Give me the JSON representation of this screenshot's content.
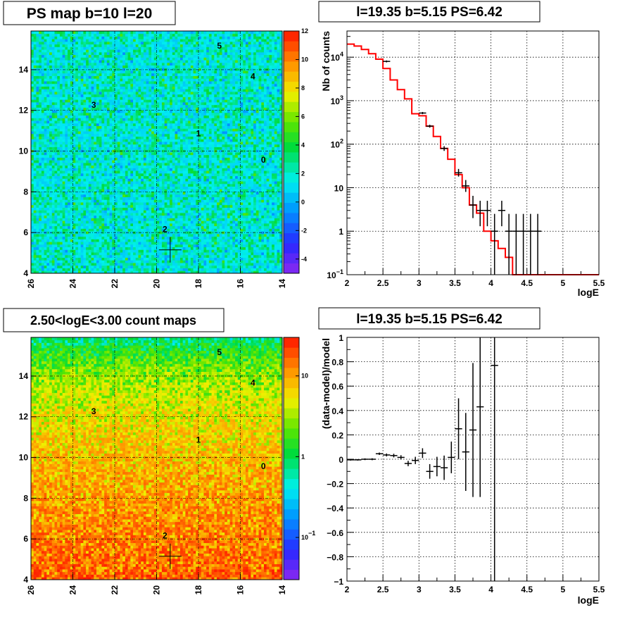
{
  "chart_data": [
    {
      "id": "ps_map",
      "type": "heatmap",
      "title": "PS map b=10 l=20",
      "x_ticks": [
        "26",
        "24",
        "22",
        "20",
        "18",
        "16",
        "14"
      ],
      "y_ticks": [
        "4",
        "6",
        "8",
        "10",
        "12",
        "14"
      ],
      "xlim": [
        26,
        14
      ],
      "ylim": [
        4,
        15.9
      ],
      "colorbar": {
        "min": -5,
        "max": 12,
        "scale": "linear",
        "tick_values": [
          -4,
          -2,
          0,
          2,
          4,
          6,
          8,
          10,
          12
        ],
        "tick_labels": [
          "-4",
          "-2",
          "0",
          "2",
          "4",
          "6",
          "8",
          "10",
          "12"
        ]
      },
      "sources": [
        {
          "label": "5",
          "l": 17.0,
          "b": 15.2
        },
        {
          "label": "4",
          "l": 15.4,
          "b": 13.7
        },
        {
          "label": "3",
          "l": 23.0,
          "b": 12.3
        },
        {
          "label": "1",
          "l": 18.0,
          "b": 10.9
        },
        {
          "label": "0",
          "l": 14.9,
          "b": 9.6
        },
        {
          "label": "2",
          "l": 19.6,
          "b": 6.2
        }
      ],
      "marker": {
        "l": 19.35,
        "b": 5.15
      }
    },
    {
      "id": "spectrum",
      "type": "line",
      "title": "l=19.35 b=5.15 PS=6.42",
      "xlabel": "logE",
      "ylabel": "Nb of counts",
      "xlim": [
        2,
        5.5
      ],
      "ylim": [
        0.1,
        40000
      ],
      "yscale": "log",
      "grid": true,
      "x_ticks": [
        "2",
        "2.5",
        "3",
        "3.5",
        "4",
        "4.5",
        "5",
        "5.5"
      ],
      "y_ticks": [
        {
          "v": 0.1,
          "base": "10",
          "exp": "−1"
        },
        {
          "v": 1,
          "text": "1"
        },
        {
          "v": 10,
          "text": "10"
        },
        {
          "v": 100,
          "base": "10",
          "exp": "2"
        },
        {
          "v": 1000,
          "base": "10",
          "exp": "3"
        },
        {
          "v": 10000,
          "base": "10",
          "exp": "4"
        }
      ],
      "model_steps": [
        {
          "x0": 2.0,
          "x1": 2.1,
          "y": 20000
        },
        {
          "x0": 2.1,
          "x1": 2.2,
          "y": 18000
        },
        {
          "x0": 2.2,
          "x1": 2.3,
          "y": 15000
        },
        {
          "x0": 2.3,
          "x1": 2.4,
          "y": 12000
        },
        {
          "x0": 2.4,
          "x1": 2.5,
          "y": 9000
        },
        {
          "x0": 2.5,
          "x1": 2.6,
          "y": 5500
        },
        {
          "x0": 2.6,
          "x1": 2.7,
          "y": 3000
        },
        {
          "x0": 2.7,
          "x1": 2.8,
          "y": 1800
        },
        {
          "x0": 2.8,
          "x1": 2.9,
          "y": 1100
        },
        {
          "x0": 2.9,
          "x1": 3.0,
          "y": 500
        },
        {
          "x0": 3.0,
          "x1": 3.1,
          "y": 450
        },
        {
          "x0": 3.1,
          "x1": 3.2,
          "y": 260
        },
        {
          "x0": 3.2,
          "x1": 3.3,
          "y": 150
        },
        {
          "x0": 3.3,
          "x1": 3.4,
          "y": 80
        },
        {
          "x0": 3.4,
          "x1": 3.5,
          "y": 45
        },
        {
          "x0": 3.5,
          "x1": 3.6,
          "y": 20
        },
        {
          "x0": 3.6,
          "x1": 3.7,
          "y": 10
        },
        {
          "x0": 3.7,
          "x1": 3.8,
          "y": 4
        },
        {
          "x0": 3.8,
          "x1": 3.9,
          "y": 2.6
        },
        {
          "x0": 3.9,
          "x1": 4.0,
          "y": 1
        },
        {
          "x0": 4.0,
          "x1": 4.1,
          "y": 0.6
        },
        {
          "x0": 4.1,
          "x1": 4.2,
          "y": 0.4
        },
        {
          "x0": 4.2,
          "x1": 4.3,
          "y": 0.25
        },
        {
          "x0": 4.3,
          "x1": 4.4,
          "y": 0.1
        },
        {
          "x0": 4.4,
          "x1": 5.5,
          "y": 0.1
        }
      ],
      "data_points": [
        {
          "x": 2.55,
          "y": 8000,
          "lo": 7600,
          "hi": 8400
        },
        {
          "x": 3.05,
          "y": 520,
          "lo": 490,
          "hi": 550
        },
        {
          "x": 3.15,
          "y": 260,
          "lo": 240,
          "hi": 280
        },
        {
          "x": 3.35,
          "y": 80,
          "lo": 70,
          "hi": 90
        },
        {
          "x": 3.55,
          "y": 22,
          "lo": 18,
          "hi": 27
        },
        {
          "x": 3.65,
          "y": 11,
          "lo": 8,
          "hi": 15
        },
        {
          "x": 3.75,
          "y": 4,
          "lo": 2,
          "hi": 6.5
        },
        {
          "x": 3.85,
          "y": 3,
          "lo": 1.3,
          "hi": 5
        },
        {
          "x": 3.95,
          "y": 3,
          "lo": 1.3,
          "hi": 5
        },
        {
          "x": 4.05,
          "y": 1,
          "lo": 0.1,
          "hi": 2.5
        },
        {
          "x": 4.15,
          "y": 3,
          "lo": 1.3,
          "hi": 5
        },
        {
          "x": 4.25,
          "y": 1,
          "lo": 0.1,
          "hi": 2.5
        },
        {
          "x": 4.35,
          "y": 1,
          "lo": 0.1,
          "hi": 2.5
        },
        {
          "x": 4.45,
          "y": 1,
          "lo": 0.1,
          "hi": 2.5
        },
        {
          "x": 4.55,
          "y": 1,
          "lo": 0.1,
          "hi": 2.5
        },
        {
          "x": 4.65,
          "y": 1,
          "lo": 0.1,
          "hi": 2.5
        }
      ],
      "model_color": "#ff0000"
    },
    {
      "id": "count_map",
      "type": "heatmap",
      "title": "2.50<logE<3.00 count maps",
      "x_ticks": [
        "26",
        "24",
        "22",
        "20",
        "18",
        "16",
        "14"
      ],
      "y_ticks": [
        "4",
        "6",
        "8",
        "10",
        "12",
        "14"
      ],
      "xlim": [
        26,
        14
      ],
      "ylim": [
        4,
        15.9
      ],
      "colorbar": {
        "min": 0.03,
        "max": 30,
        "scale": "log",
        "tick_values": [
          0.1,
          1,
          10
        ],
        "tick_labels": [
          {
            "base": "10",
            "exp": "−1"
          },
          {
            "text": "1"
          },
          {
            "text": "10"
          }
        ]
      },
      "sources": [
        {
          "label": "5",
          "l": 17.0,
          "b": 15.2
        },
        {
          "label": "4",
          "l": 15.4,
          "b": 13.7
        },
        {
          "label": "3",
          "l": 23.0,
          "b": 12.3
        },
        {
          "label": "1",
          "l": 18.0,
          "b": 10.9
        },
        {
          "label": "0",
          "l": 14.9,
          "b": 9.6
        },
        {
          "label": "2",
          "l": 19.6,
          "b": 6.2
        }
      ],
      "marker": {
        "l": 19.35,
        "b": 5.15
      }
    },
    {
      "id": "residuals",
      "type": "scatter",
      "title": "l=19.35 b=5.15 PS=6.42",
      "xlabel": "logE",
      "ylabel": "(data-model)/model",
      "xlim": [
        2,
        5.5
      ],
      "ylim": [
        -1,
        1
      ],
      "grid": true,
      "x_ticks": [
        "2",
        "2.5",
        "3",
        "3.5",
        "4",
        "4.5",
        "5",
        "5.5"
      ],
      "y_ticks": [
        "−1",
        "−0.8",
        "−0.6",
        "−0.4",
        "−0.2",
        "0",
        "0.2",
        "0.4",
        "0.6",
        "0.8",
        "1"
      ],
      "points": [
        {
          "x": 2.05,
          "y": -0.005,
          "err": 0.006
        },
        {
          "x": 2.15,
          "y": -0.005,
          "err": 0.006
        },
        {
          "x": 2.25,
          "y": 0.0,
          "err": 0.007
        },
        {
          "x": 2.35,
          "y": 0.0,
          "err": 0.008
        },
        {
          "x": 2.45,
          "y": 0.045,
          "err": 0.01
        },
        {
          "x": 2.55,
          "y": 0.035,
          "err": 0.012
        },
        {
          "x": 2.65,
          "y": 0.03,
          "err": 0.015
        },
        {
          "x": 2.75,
          "y": 0.015,
          "err": 0.018
        },
        {
          "x": 2.85,
          "y": -0.035,
          "err": 0.022
        },
        {
          "x": 2.95,
          "y": -0.01,
          "err": 0.03
        },
        {
          "x": 3.05,
          "y": 0.05,
          "err": 0.04
        },
        {
          "x": 3.15,
          "y": -0.1,
          "err": 0.06
        },
        {
          "x": 3.25,
          "y": -0.06,
          "err": 0.08
        },
        {
          "x": 3.35,
          "y": -0.07,
          "err": 0.1
        },
        {
          "x": 3.45,
          "y": 0.015,
          "err": 0.13
        },
        {
          "x": 3.55,
          "y": 0.25,
          "err": 0.25
        },
        {
          "x": 3.65,
          "y": 0.06,
          "err": 0.32
        },
        {
          "x": 3.75,
          "y": 0.24,
          "err": 0.55
        },
        {
          "x": 3.85,
          "y": 0.43,
          "err": 0.74
        },
        {
          "x": 4.05,
          "y": 0.77,
          "err": 1.77
        }
      ]
    }
  ]
}
